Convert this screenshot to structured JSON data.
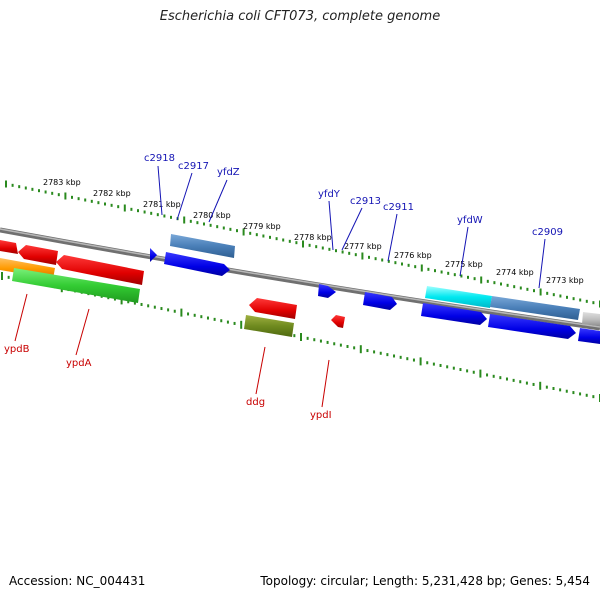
{
  "title": "Escherichia coli CFT073, complete genome",
  "footer": {
    "accession": "Accession: NC_004431",
    "topology": "Topology: circular; Length: 5,231,428 bp; Genes: 5,454"
  },
  "colors": {
    "tick": "#2a8a1e",
    "backbone": "#8a8a8a",
    "forward_label": "#1414b4",
    "reverse_label": "#c80000",
    "kbp_label": "#000000"
  },
  "kbp_labels": [
    "2783 kbp",
    "2782 kbp",
    "2781 kbp",
    "2780 kbp",
    "2779 kbp",
    "2778 kbp",
    "2777 kbp",
    "2776 kbp",
    "2775 kbp",
    "2774 kbp",
    "2773 kbp"
  ],
  "forward_gene_labels": [
    "c2918",
    "c2917",
    "yfdZ",
    "yfdY",
    "c2913",
    "c2911",
    "yfdW",
    "c2909"
  ],
  "reverse_gene_labels": [
    "ypdB",
    "ypdA",
    "ddg",
    "ypdI"
  ]
}
